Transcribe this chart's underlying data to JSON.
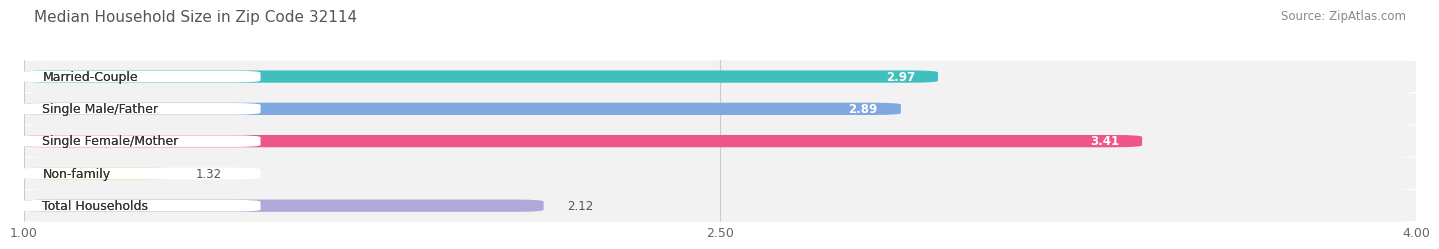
{
  "title": "Median Household Size in Zip Code 32114",
  "source": "Source: ZipAtlas.com",
  "categories": [
    "Married-Couple",
    "Single Male/Father",
    "Single Female/Mother",
    "Non-family",
    "Total Households"
  ],
  "values": [
    2.97,
    2.89,
    3.41,
    1.32,
    2.12
  ],
  "bar_colors": [
    "#40bfbf",
    "#7fa8e0",
    "#ee5588",
    "#f5c98a",
    "#b0a8d8"
  ],
  "xlim": [
    1.0,
    4.0
  ],
  "xticks": [
    1.0,
    2.5,
    4.0
  ],
  "xstart": 1.0,
  "background_color": "#ffffff",
  "row_bg_color": "#f0f0f0",
  "title_fontsize": 11,
  "source_fontsize": 8.5,
  "label_fontsize": 9,
  "value_fontsize": 8.5
}
